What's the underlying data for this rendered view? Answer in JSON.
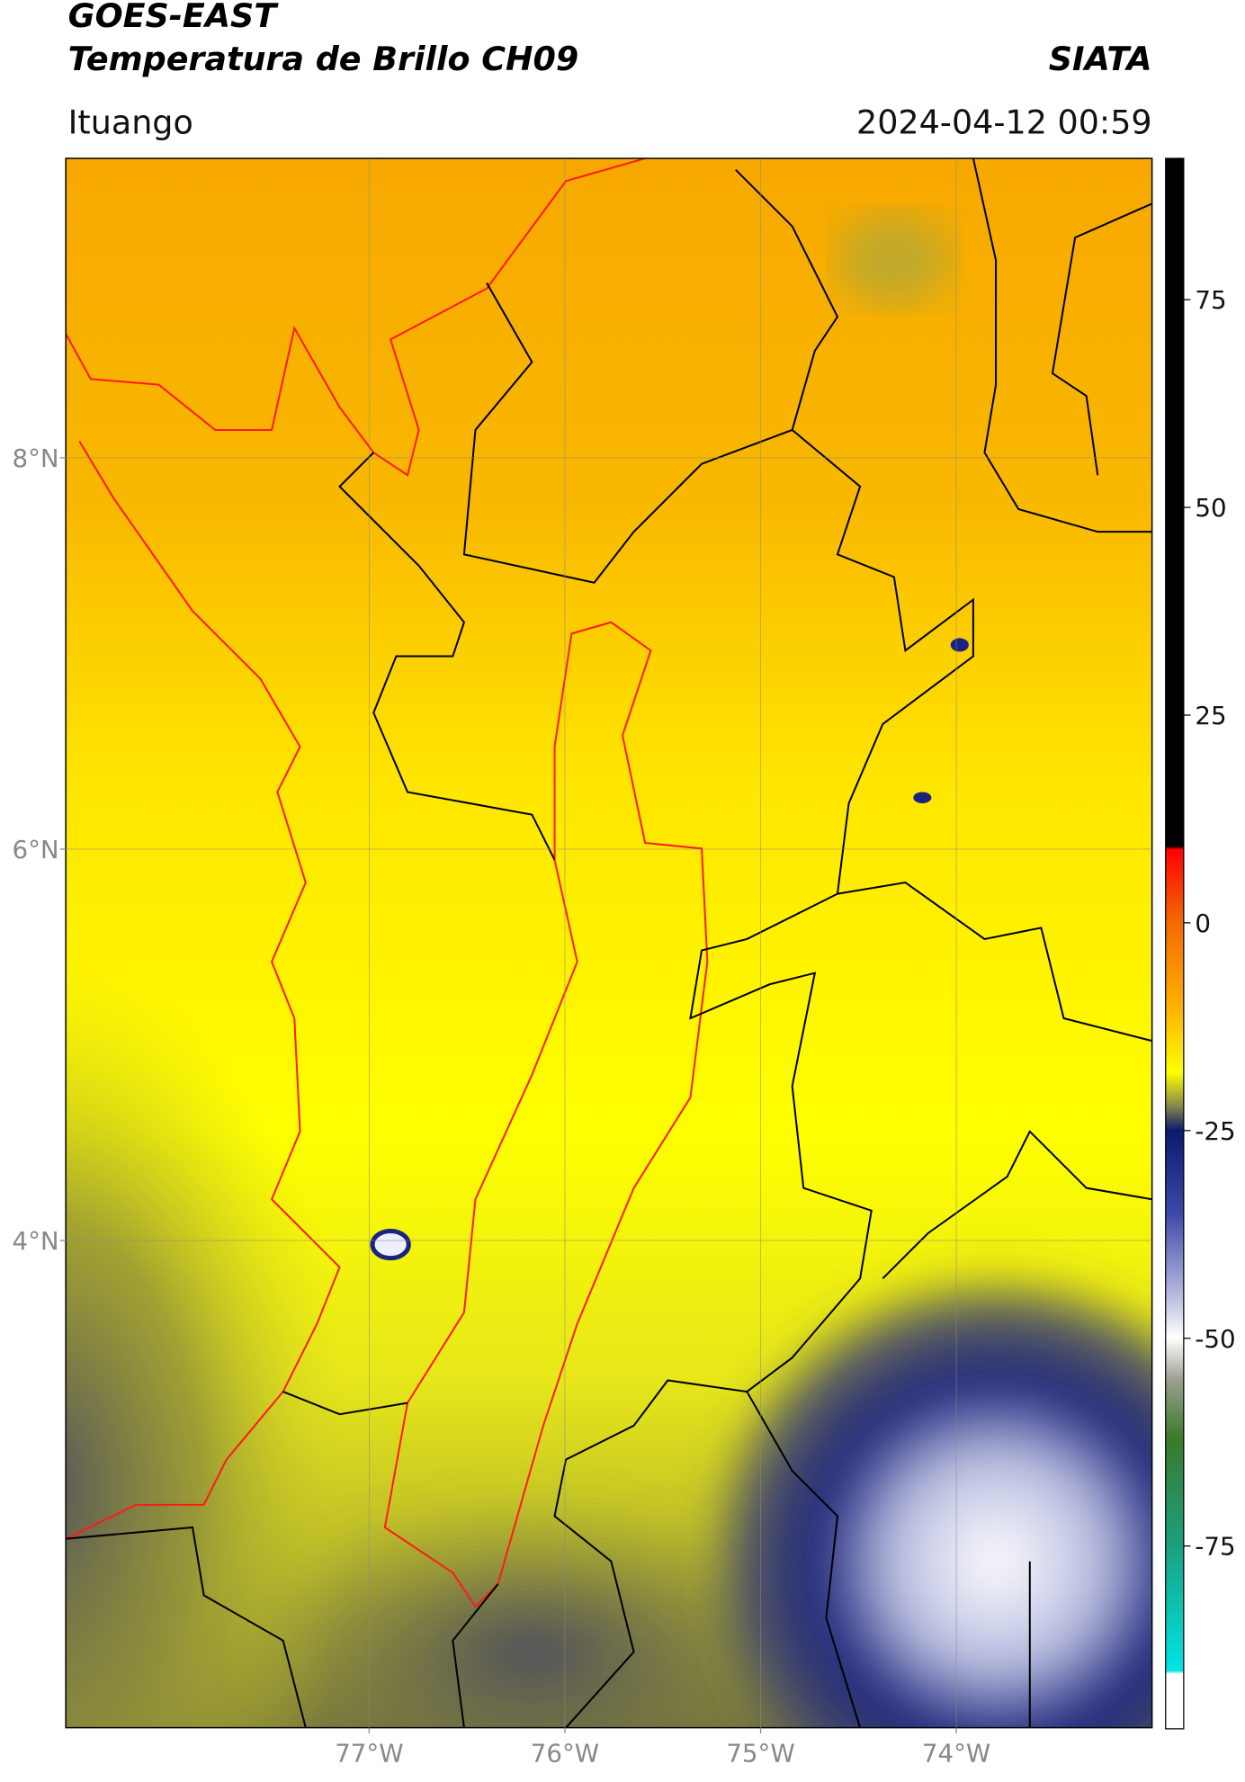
{
  "header": {
    "title_line1": "GOES-EAST",
    "title_line2": "Temperatura de Brillo CH09",
    "org": "SIATA",
    "location": "Ituango",
    "datetime": "2024-04-12 00:59"
  },
  "map": {
    "xlim": [
      -78.55,
      -73.0
    ],
    "ylim": [
      1.51,
      9.53
    ],
    "lon_ticks": [
      {
        "value": -77,
        "label": "77°W"
      },
      {
        "value": -76,
        "label": "76°W"
      },
      {
        "value": -75,
        "label": "75°W"
      },
      {
        "value": -74,
        "label": "74°W"
      }
    ],
    "lat_ticks": [
      {
        "value": 8,
        "label": "8°N"
      },
      {
        "value": 6,
        "label": "6°N"
      },
      {
        "value": 4,
        "label": "4°N"
      }
    ]
  },
  "colorbar": {
    "lim": [
      -97,
      92
    ],
    "ticks": [
      75,
      50,
      25,
      0,
      -25,
      -50,
      -75
    ]
  }
}
